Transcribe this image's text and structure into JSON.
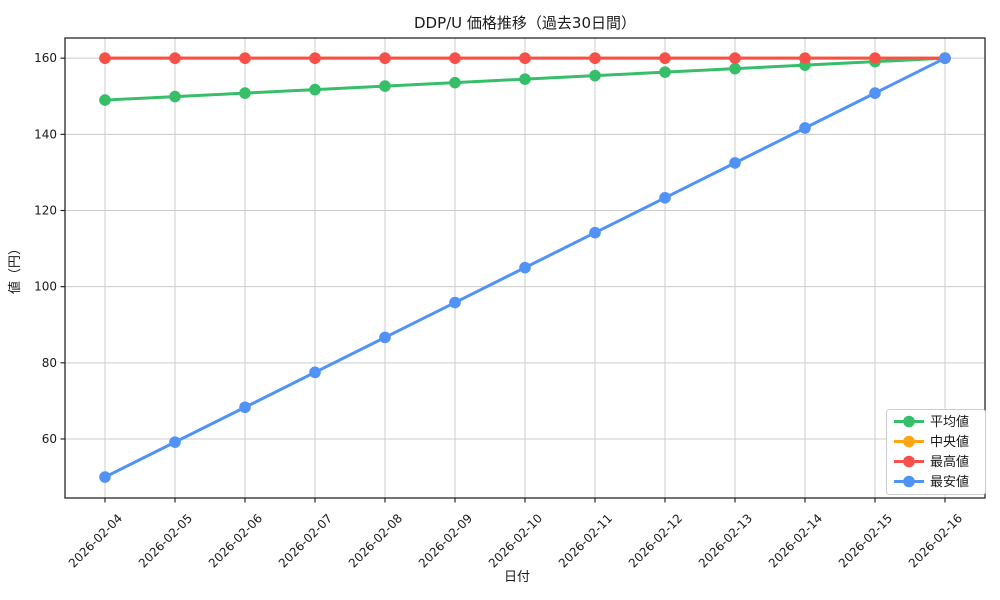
{
  "chart_data": {
    "type": "line",
    "title": "DDP/U 価格推移（過去30日間）",
    "xlabel": "日付",
    "ylabel": "値（円）",
    "categories": [
      "2026-02-04",
      "2026-02-05",
      "2026-02-06",
      "2026-02-07",
      "2026-02-08",
      "2026-02-09",
      "2026-02-10",
      "2026-02-11",
      "2026-02-12",
      "2026-02-13",
      "2026-02-14",
      "2026-02-15",
      "2026-02-16"
    ],
    "series": [
      {
        "id": "avg",
        "name": "平均値",
        "color": "#37be69",
        "values": [
          149.0,
          149.92,
          150.83,
          151.75,
          152.67,
          153.58,
          154.5,
          155.42,
          156.33,
          157.25,
          158.17,
          159.08,
          160.0
        ]
      },
      {
        "id": "median",
        "name": "中央値",
        "color": "#ffa514",
        "values": [
          160.0,
          160.0,
          160.0,
          160.0,
          160.0,
          160.0,
          160.0,
          160.0,
          160.0,
          160.0,
          160.0,
          160.0,
          160.0
        ]
      },
      {
        "id": "max",
        "name": "最高値",
        "color": "#f7504a",
        "values": [
          160.0,
          160.0,
          160.0,
          160.0,
          160.0,
          160.0,
          160.0,
          160.0,
          160.0,
          160.0,
          160.0,
          160.0,
          160.0
        ]
      },
      {
        "id": "min",
        "name": "最安値",
        "color": "#5092f5",
        "values": [
          50.0,
          59.17,
          68.33,
          77.5,
          86.67,
          95.83,
          105.0,
          114.17,
          123.33,
          132.5,
          141.67,
          150.83,
          160.0
        ]
      }
    ],
    "yticks": [
      60,
      80,
      100,
      120,
      140,
      160
    ],
    "ylim": [
      44.5,
      165.3
    ],
    "grid": true,
    "marker": "circle",
    "legend_position": "lower right",
    "style": {
      "background": "#ffffff",
      "grid_color": "#cccccc",
      "spine_color": "#262626",
      "text_color": "#1a1a1a",
      "legend_border": "#cccccc"
    }
  }
}
